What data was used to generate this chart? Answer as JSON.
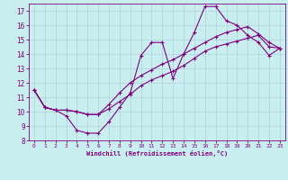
{
  "xlabel": "Windchill (Refroidissement éolien,°C)",
  "background_color": "#c8eef0",
  "line_color": "#800080",
  "grid_color": "#b0d0d8",
  "xlim": [
    -0.5,
    23.5
  ],
  "ylim": [
    8,
    17.5
  ],
  "xticks": [
    0,
    1,
    2,
    3,
    4,
    5,
    6,
    7,
    8,
    9,
    10,
    11,
    12,
    13,
    14,
    15,
    16,
    17,
    18,
    19,
    20,
    21,
    22,
    23
  ],
  "yticks": [
    8,
    9,
    10,
    11,
    12,
    13,
    14,
    15,
    16,
    17
  ],
  "series": [
    {
      "x": [
        0,
        1,
        2,
        3,
        4,
        5,
        6,
        7,
        8,
        9,
        10,
        11,
        12,
        13,
        14,
        15,
        16,
        17,
        18,
        19,
        20,
        21,
        22,
        23
      ],
      "y": [
        11.5,
        10.3,
        10.1,
        9.7,
        8.7,
        8.5,
        8.5,
        9.3,
        10.3,
        11.3,
        13.9,
        14.8,
        14.8,
        12.3,
        14.0,
        15.5,
        17.3,
        17.3,
        16.3,
        16.0,
        15.3,
        14.8,
        13.9,
        14.4
      ]
    },
    {
      "x": [
        0,
        1,
        2,
        3,
        4,
        5,
        6,
        7,
        8,
        9,
        10,
        11,
        12,
        13,
        14,
        15,
        16,
        17,
        18,
        19,
        20,
        21,
        22,
        23
      ],
      "y": [
        11.5,
        10.3,
        10.1,
        10.1,
        10.0,
        9.8,
        9.8,
        10.2,
        10.7,
        11.2,
        11.8,
        12.2,
        12.5,
        12.8,
        13.2,
        13.7,
        14.2,
        14.5,
        14.7,
        14.9,
        15.1,
        15.3,
        14.5,
        14.4
      ]
    },
    {
      "x": [
        0,
        1,
        2,
        3,
        4,
        5,
        6,
        7,
        8,
        9,
        10,
        11,
        12,
        13,
        14,
        15,
        16,
        17,
        18,
        19,
        20,
        21,
        22,
        23
      ],
      "y": [
        11.5,
        10.3,
        10.1,
        10.1,
        10.0,
        9.8,
        9.8,
        10.5,
        11.3,
        12.0,
        12.5,
        12.9,
        13.3,
        13.6,
        14.0,
        14.4,
        14.8,
        15.2,
        15.5,
        15.7,
        15.9,
        15.4,
        14.8,
        14.4
      ]
    }
  ]
}
